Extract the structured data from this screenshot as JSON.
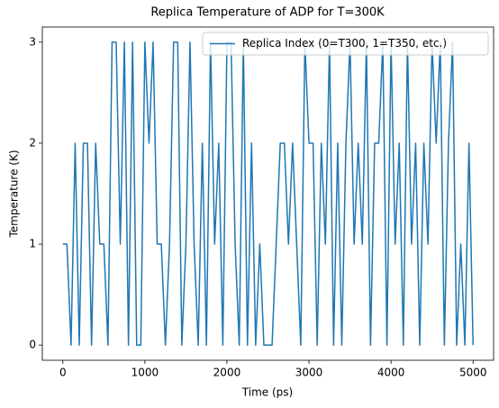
{
  "chart_data": {
    "type": "line",
    "title": "Replica Temperature of ADP for T=300K",
    "xlabel": "Time (ps)",
    "ylabel": "Temperature (K)",
    "x": [
      0,
      50,
      100,
      150,
      200,
      250,
      300,
      350,
      400,
      450,
      500,
      550,
      600,
      650,
      700,
      750,
      800,
      850,
      900,
      950,
      1000,
      1050,
      1100,
      1150,
      1200,
      1250,
      1300,
      1350,
      1400,
      1450,
      1500,
      1550,
      1600,
      1650,
      1700,
      1750,
      1800,
      1850,
      1900,
      1950,
      2000,
      2050,
      2100,
      2150,
      2200,
      2250,
      2300,
      2350,
      2400,
      2450,
      2500,
      2550,
      2600,
      2650,
      2700,
      2750,
      2800,
      2850,
      2900,
      2950,
      3000,
      3050,
      3100,
      3150,
      3200,
      3250,
      3300,
      3350,
      3400,
      3450,
      3500,
      3550,
      3600,
      3650,
      3700,
      3750,
      3800,
      3850,
      3900,
      3950,
      4000,
      4050,
      4100,
      4150,
      4200,
      4250,
      4300,
      4350,
      4400,
      4450,
      4500,
      4550,
      4600,
      4650,
      4700,
      4750,
      4800,
      4850,
      4900,
      4950,
      5000
    ],
    "series": [
      {
        "name": "Replica Index (0=T300, 1=T350, etc.)",
        "color": "#1f77b4",
        "values": [
          1,
          1,
          0,
          2,
          0,
          2,
          2,
          0,
          2,
          1,
          1,
          0,
          3,
          3,
          1,
          3,
          0,
          3,
          0,
          0,
          3,
          2,
          3,
          1,
          1,
          0,
          1,
          3,
          3,
          0,
          1,
          3,
          1,
          0,
          2,
          0,
          3,
          1,
          2,
          0,
          3,
          3,
          1,
          0,
          3,
          0,
          2,
          0,
          1,
          0,
          0,
          0,
          1,
          2,
          2,
          1,
          2,
          1,
          0,
          3,
          2,
          2,
          0,
          2,
          1,
          3,
          0,
          2,
          0,
          2,
          3,
          1,
          2,
          1,
          3,
          0,
          2,
          2,
          3,
          0,
          3,
          1,
          2,
          0,
          3,
          1,
          2,
          0,
          2,
          1,
          3,
          2,
          3,
          0,
          2,
          3,
          0,
          1,
          0,
          2,
          0
        ]
      }
    ],
    "xlim": [
      -250,
      5250
    ],
    "xticks": [
      0,
      1000,
      2000,
      3000,
      4000,
      5000
    ],
    "ylim": [
      -0.15,
      3.15
    ],
    "yticks": [
      0,
      1,
      2,
      3
    ],
    "legend": "upper right"
  }
}
